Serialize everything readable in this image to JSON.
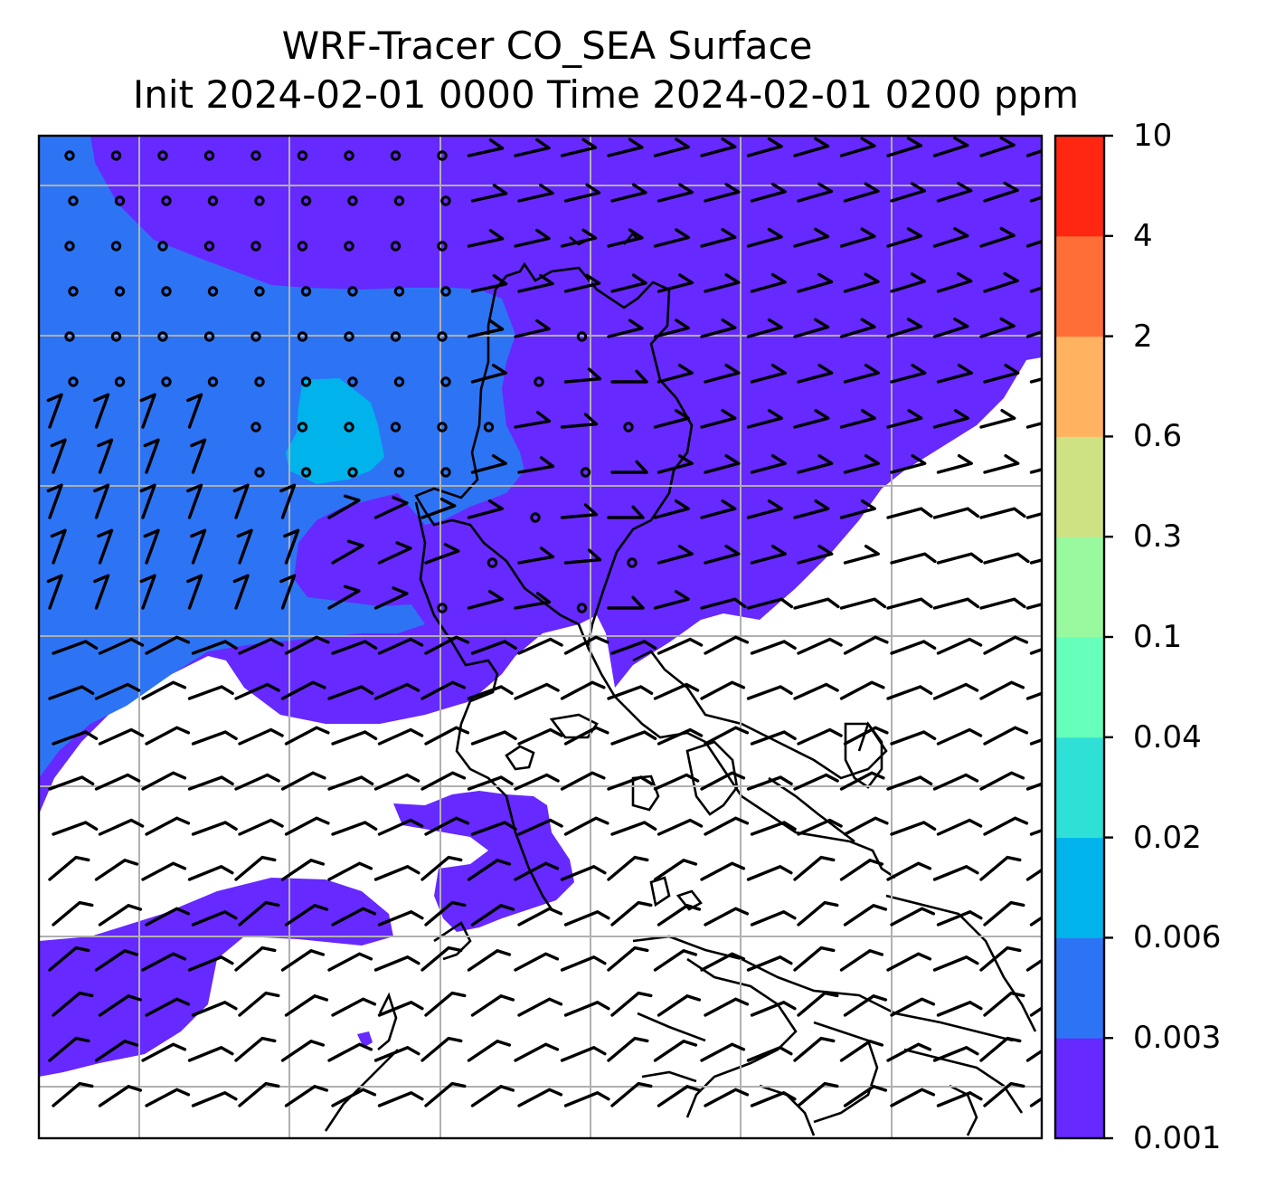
{
  "title": {
    "line1": "WRF-Tracer CO_SEA Surface",
    "line2": "Init 2024-02-01 0000 Time 2024-02-01 0200 ppm"
  },
  "colorbar": {
    "levels": [
      "0.001",
      "0.003",
      "0.006",
      "0.02",
      "0.04",
      "0.1",
      "0.3",
      "0.6",
      "2",
      "4",
      "10"
    ],
    "colors": [
      "#6629ff",
      "#2d74f4",
      "#00b4eb",
      "#2ee0d6",
      "#66ffbb",
      "#99f99f",
      "#cfe283",
      "#ffb360",
      "#ff6e37",
      "#ff2711"
    ]
  },
  "map": {
    "background": "#ffffff",
    "field_colors": {
      "lowest": "#6629ff",
      "low": "#2d74f4",
      "mid": "#00b4eb"
    },
    "gridlines": true,
    "grid_color": "#b0b0b0"
  }
}
